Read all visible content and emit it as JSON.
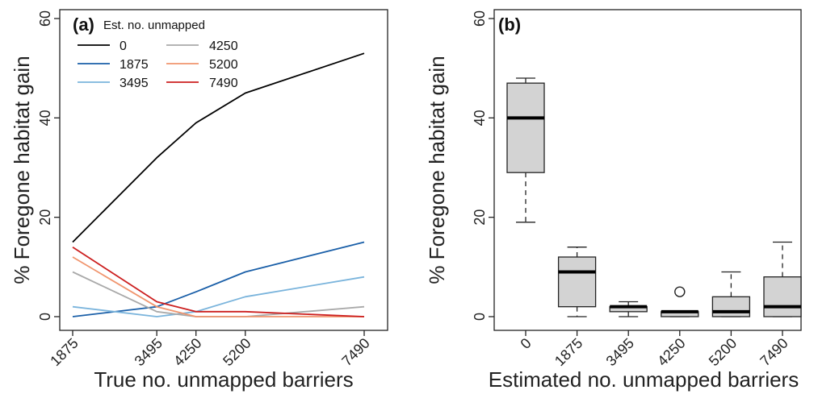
{
  "chart_data": [
    {
      "panel": "(a)",
      "type": "line",
      "xlabel": "True no. unmapped barriers",
      "ylabel": "% Foregone habitat gain",
      "x": [
        1875,
        3495,
        4250,
        5200,
        7490
      ],
      "x_ticks": [
        "1875",
        "3495",
        "4250",
        "5200",
        "7490"
      ],
      "ylim": [
        0,
        60
      ],
      "y_ticks": [
        0,
        20,
        40,
        60
      ],
      "legend_title": "Est. no. unmapped",
      "legend_position": "top-left",
      "series": [
        {
          "name": "0",
          "color": "#000000",
          "values": [
            15,
            32,
            39,
            45,
            53
          ]
        },
        {
          "name": "1875",
          "color": "#1a5fa8",
          "values": [
            0,
            2,
            5,
            9,
            15
          ]
        },
        {
          "name": "3495",
          "color": "#7ab4dc",
          "values": [
            2,
            0,
            1,
            4,
            8
          ]
        },
        {
          "name": "4250",
          "color": "#a9a9a9",
          "values": [
            9,
            1,
            0,
            0,
            2
          ]
        },
        {
          "name": "5200",
          "color": "#f0956e",
          "values": [
            12,
            2,
            0,
            0,
            0
          ]
        },
        {
          "name": "7490",
          "color": "#cc1f1f",
          "values": [
            14,
            3,
            1,
            1,
            0
          ]
        }
      ]
    },
    {
      "panel": "(b)",
      "type": "box",
      "xlabel": "Estimated no. unmapped barriers",
      "ylabel": "% Foregone habitat gain",
      "categories": [
        "0",
        "1875",
        "3495",
        "4250",
        "5200",
        "7490"
      ],
      "ylim": [
        0,
        60
      ],
      "y_ticks": [
        0,
        20,
        40,
        60
      ],
      "box_color": "#d3d3d3",
      "boxes": [
        {
          "min": 19,
          "q1": 29,
          "median": 40,
          "q3": 47,
          "max": 48,
          "outliers": []
        },
        {
          "min": 0,
          "q1": 2,
          "median": 9,
          "q3": 12,
          "max": 14,
          "outliers": []
        },
        {
          "min": 0,
          "q1": 1,
          "median": 2,
          "q3": 2,
          "max": 3,
          "outliers": []
        },
        {
          "min": 0,
          "q1": 0,
          "median": 1,
          "q3": 1,
          "max": 1,
          "outliers": [
            5
          ]
        },
        {
          "min": 0,
          "q1": 0,
          "median": 1,
          "q3": 4,
          "max": 9,
          "outliers": []
        },
        {
          "min": 0,
          "q1": 0,
          "median": 2,
          "q3": 8,
          "max": 15,
          "outliers": []
        }
      ]
    }
  ]
}
